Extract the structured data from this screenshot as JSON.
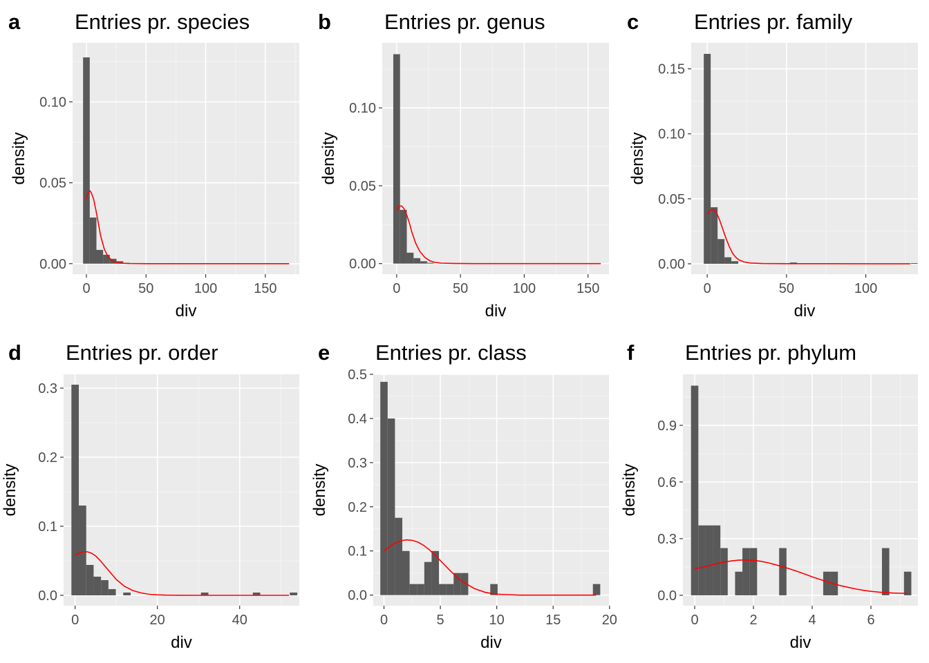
{
  "colors": {
    "panel_bg": "#ebebeb",
    "grid_major": "#ffffff",
    "bar_fill": "#595959",
    "density_line": "#ff0000",
    "tick_text": "#4d4d4d",
    "text": "#000000"
  },
  "chart_data": [
    {
      "type": "bar",
      "letter": "a",
      "title": "Entries pr. species",
      "xlabel": "div",
      "ylabel": "density",
      "xlim": [
        -11.6,
        178.5
      ],
      "ylim": [
        -0.0065,
        0.1365
      ],
      "xticks": [
        0,
        50,
        100,
        150
      ],
      "xtick_labels": [
        "0",
        "50",
        "100",
        "150"
      ],
      "yticks": [
        0.0,
        0.05,
        0.1
      ],
      "ytick_labels": [
        "0.00",
        "0.05",
        "0.10"
      ],
      "grid": true,
      "histogram": {
        "bin_width": 5.6,
        "bin_starts": [
          -2.8,
          2.8,
          8.4,
          14,
          19.6,
          25.2,
          30.8
        ],
        "densities": [
          0.1275,
          0.0285,
          0.0085,
          0.0055,
          0.003,
          0.0015,
          0.0005
        ]
      },
      "density_curve": {
        "x": [
          0,
          1,
          3,
          4,
          6,
          8,
          10,
          12,
          15,
          18,
          22,
          27,
          35,
          50,
          100,
          150,
          170
        ],
        "y": [
          0.04,
          0.043,
          0.045,
          0.044,
          0.04,
          0.033,
          0.025,
          0.017,
          0.009,
          0.0045,
          0.0015,
          0.0004,
          0.0001,
          0,
          0,
          0,
          0
        ]
      }
    },
    {
      "type": "bar",
      "letter": "b",
      "title": "Entries pr. genus",
      "xlabel": "div",
      "ylabel": "density",
      "xlim": [
        -11.3,
        166.4
      ],
      "ylim": [
        -0.0068,
        0.1418
      ],
      "xticks": [
        0,
        50,
        100,
        150
      ],
      "xtick_labels": [
        "0",
        "50",
        "100",
        "150"
      ],
      "yticks": [
        0.0,
        0.05,
        0.1
      ],
      "ytick_labels": [
        "0.00",
        "0.05",
        "0.10"
      ],
      "grid": true,
      "histogram": {
        "bin_width": 5.3,
        "bin_starts": [
          -2.65,
          2.65,
          7.95,
          13.25,
          18.55,
          23.85
        ],
        "densities": [
          0.1345,
          0.0345,
          0.007,
          0.0035,
          0.0015,
          0.0005
        ]
      },
      "density_curve": {
        "x": [
          0,
          2,
          4,
          6,
          8,
          10,
          12,
          15,
          18,
          22,
          26,
          30,
          35,
          45,
          60,
          100,
          160
        ],
        "y": [
          0.034,
          0.037,
          0.037,
          0.035,
          0.031,
          0.026,
          0.02,
          0.013,
          0.008,
          0.004,
          0.0018,
          0.0008,
          0.0003,
          0.0001,
          0,
          0,
          0
        ]
      }
    },
    {
      "type": "bar",
      "letter": "c",
      "title": "Entries pr. family",
      "xlabel": "div",
      "ylabel": "density",
      "xlim": [
        -10.1,
        132.9
      ],
      "ylim": [
        -0.008,
        0.17
      ],
      "xticks": [
        0,
        50,
        100
      ],
      "xtick_labels": [
        "0",
        "50",
        "100"
      ],
      "yticks": [
        0.0,
        0.05,
        0.1,
        0.15
      ],
      "ytick_labels": [
        "0.00",
        "0.05",
        "0.10",
        "0.15"
      ],
      "grid": true,
      "histogram": {
        "bin_width": 4.35,
        "bin_starts": [
          -2.175,
          2.175,
          6.525,
          10.875,
          15.225,
          52.2,
          76.1,
          128.3
        ],
        "densities": [
          0.1615,
          0.0435,
          0.019,
          0.005,
          0.002,
          0.001,
          0.0005,
          0.0005
        ]
      },
      "density_curve": {
        "x": [
          0,
          1.5,
          3,
          4.5,
          6,
          8,
          10,
          12,
          14,
          16,
          18,
          20,
          23,
          27,
          35,
          50,
          75,
          100,
          128
        ],
        "y": [
          0.038,
          0.041,
          0.042,
          0.041,
          0.039,
          0.033,
          0.026,
          0.019,
          0.013,
          0.008,
          0.005,
          0.003,
          0.0015,
          0.0006,
          0.0002,
          0.0001,
          0.0001,
          0,
          0
        ]
      }
    },
    {
      "type": "bar",
      "letter": "d",
      "title": "Entries pr. order",
      "xlabel": "div",
      "ylabel": "density",
      "xlim": [
        -2.8,
        54.5
      ],
      "ylim": [
        -0.015,
        0.32
      ],
      "xticks": [
        0,
        20,
        40
      ],
      "xtick_labels": [
        "0",
        "20",
        "40"
      ],
      "yticks": [
        0.0,
        0.1,
        0.2,
        0.3
      ],
      "ytick_labels": [
        "0.0",
        "0.1",
        "0.2",
        "0.3"
      ],
      "grid": true,
      "histogram": {
        "bin_width": 1.8,
        "bin_starts": [
          -0.9,
          0.9,
          2.7,
          4.5,
          6.3,
          8.1,
          11.7,
          30.6,
          43.2,
          52.2
        ],
        "densities": [
          0.305,
          0.13,
          0.044,
          0.027,
          0.022,
          0.009,
          0.004,
          0.004,
          0.004,
          0.004
        ]
      },
      "density_curve": {
        "x": [
          0,
          1,
          2,
          3,
          4,
          5,
          6,
          7,
          8,
          9,
          10,
          12,
          14,
          16,
          18,
          20,
          22,
          25,
          30,
          40,
          52
        ],
        "y": [
          0.058,
          0.061,
          0.063,
          0.063,
          0.061,
          0.057,
          0.051,
          0.044,
          0.037,
          0.03,
          0.023,
          0.013,
          0.007,
          0.0035,
          0.0015,
          0.0007,
          0.0003,
          0.0001,
          0,
          0,
          0
        ]
      }
    },
    {
      "type": "bar",
      "letter": "e",
      "title": "Entries pr. class",
      "xlabel": "div",
      "ylabel": "density",
      "xlim": [
        -0.95,
        19.95
      ],
      "ylim": [
        -0.024,
        0.5
      ],
      "xticks": [
        0,
        5,
        10,
        15,
        20
      ],
      "xtick_labels": [
        "0",
        "5",
        "10",
        "15",
        "20"
      ],
      "yticks": [
        0.0,
        0.1,
        0.2,
        0.3,
        0.4,
        0.5
      ],
      "ytick_labels": [
        "0.0",
        "0.1",
        "0.2",
        "0.3",
        "0.4",
        "0.5"
      ],
      "grid": true,
      "histogram": {
        "bin_width": 0.65,
        "bin_starts": [
          -0.325,
          0.325,
          0.975,
          1.625,
          2.275,
          2.925,
          3.575,
          4.225,
          4.875,
          5.525,
          6.175,
          6.825,
          9.425,
          18.525
        ],
        "densities": [
          0.483,
          0.4,
          0.175,
          0.1,
          0.025,
          0.025,
          0.075,
          0.1,
          0.025,
          0.025,
          0.05,
          0.05,
          0.025,
          0.025
        ]
      },
      "density_curve": {
        "x": [
          0,
          0.5,
          1,
          1.5,
          2,
          2.5,
          3,
          3.5,
          4,
          4.5,
          5,
          5.5,
          6,
          6.5,
          7,
          8,
          9,
          10,
          11,
          12,
          13,
          15,
          18.8
        ],
        "y": [
          0.1,
          0.11,
          0.118,
          0.123,
          0.125,
          0.124,
          0.12,
          0.113,
          0.103,
          0.091,
          0.078,
          0.065,
          0.052,
          0.04,
          0.03,
          0.015,
          0.006,
          0.002,
          0.001,
          0,
          0,
          0,
          0
        ]
      }
    },
    {
      "type": "bar",
      "letter": "f",
      "title": "Entries pr. phylum",
      "xlabel": "div",
      "ylabel": "density",
      "xlim": [
        -0.4,
        7.6
      ],
      "ylim": [
        -0.055,
        1.17
      ],
      "xticks": [
        0,
        2,
        4,
        6
      ],
      "xtick_labels": [
        "0",
        "2",
        "4",
        "6"
      ],
      "yticks": [
        0.0,
        0.3,
        0.6,
        0.9
      ],
      "ytick_labels": [
        "0.0",
        "0.3",
        "0.6",
        "0.9"
      ],
      "grid": true,
      "histogram": {
        "bin_width": 0.25,
        "bin_starts": [
          -0.125,
          0.125,
          0.375,
          0.625,
          0.875,
          1.375,
          1.625,
          1.875,
          2.875,
          4.375,
          4.625,
          6.375,
          7.125
        ],
        "densities": [
          1.11,
          0.37,
          0.37,
          0.37,
          0.25,
          0.125,
          0.25,
          0.25,
          0.25,
          0.125,
          0.125,
          0.25,
          0.125
        ]
      },
      "density_curve": {
        "x": [
          0,
          0.25,
          0.5,
          0.75,
          1,
          1.25,
          1.5,
          1.75,
          2,
          2.25,
          2.5,
          2.75,
          3,
          3.25,
          3.5,
          3.75,
          4,
          4.25,
          4.5,
          4.75,
          5,
          5.25,
          5.5,
          5.75,
          6,
          6.25,
          6.5,
          6.75,
          7,
          7.25
        ],
        "y": [
          0.14,
          0.148,
          0.158,
          0.168,
          0.176,
          0.182,
          0.186,
          0.187,
          0.185,
          0.18,
          0.172,
          0.162,
          0.151,
          0.139,
          0.126,
          0.112,
          0.098,
          0.085,
          0.072,
          0.06,
          0.05,
          0.041,
          0.033,
          0.026,
          0.021,
          0.017,
          0.014,
          0.012,
          0.011,
          0.01
        ]
      }
    }
  ]
}
